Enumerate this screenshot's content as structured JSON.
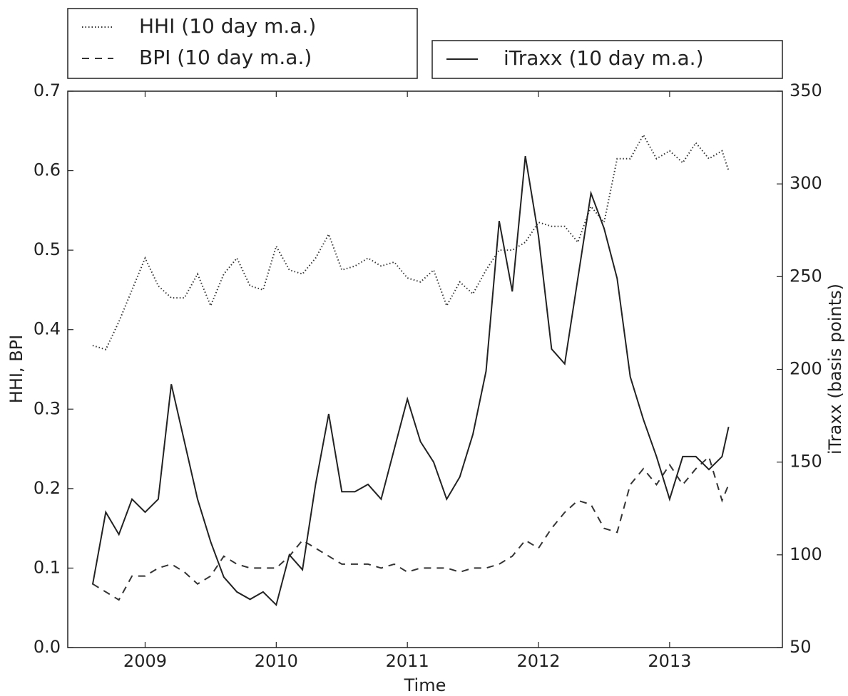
{
  "chart_data": {
    "type": "line",
    "xlabel": "Time",
    "ylabel": "HHI, BPI",
    "y2label": "iTraxx (basis points)",
    "x": [
      2008.6,
      2008.7,
      2008.8,
      2008.9,
      2009.0,
      2009.1,
      2009.2,
      2009.3,
      2009.4,
      2009.5,
      2009.6,
      2009.7,
      2009.8,
      2009.9,
      2010.0,
      2010.1,
      2010.2,
      2010.3,
      2010.4,
      2010.5,
      2010.6,
      2010.7,
      2010.8,
      2010.9,
      2011.0,
      2011.1,
      2011.2,
      2011.3,
      2011.4,
      2011.5,
      2011.6,
      2011.7,
      2011.8,
      2011.9,
      2012.0,
      2012.1,
      2012.2,
      2012.3,
      2012.4,
      2012.5,
      2012.6,
      2012.7,
      2012.8,
      2012.9,
      2013.0,
      2013.1,
      2013.2,
      2013.3,
      2013.4,
      2013.45
    ],
    "xlim": [
      2008.41,
      2013.86
    ],
    "xticks": [
      2009,
      2010,
      2011,
      2012,
      2013
    ],
    "ylim": [
      0,
      0.7
    ],
    "yticks": [
      {
        "value": 0,
        "label": "0.0"
      },
      0.1,
      0.2,
      0.3,
      0.4,
      0.5,
      0.6,
      0.7
    ],
    "y2lim": [
      50,
      350
    ],
    "y2ticks": [
      50,
      100,
      150,
      200,
      250,
      300,
      350
    ],
    "series": [
      {
        "name": "HHI (10 day m.a.)",
        "color": "#333333",
        "linestyle": "dotted",
        "values": [
          0.38,
          0.375,
          0.41,
          0.45,
          0.49,
          0.455,
          0.44,
          0.44,
          0.47,
          0.43,
          0.47,
          0.49,
          0.455,
          0.45,
          0.505,
          0.475,
          0.47,
          0.49,
          0.52,
          0.475,
          0.48,
          0.49,
          0.48,
          0.485,
          0.465,
          0.46,
          0.475,
          0.43,
          0.46,
          0.445,
          0.475,
          0.5,
          0.5,
          0.51,
          0.535,
          0.53,
          0.53,
          0.51,
          0.555,
          0.535,
          0.615,
          0.615,
          0.645,
          0.615,
          0.625,
          0.61,
          0.635,
          0.615,
          0.625,
          0.6
        ]
      },
      {
        "name": "BPI (10 day m.a.)",
        "color": "#333333",
        "linestyle": "dashed",
        "values": [
          0.08,
          0.07,
          0.06,
          0.09,
          0.09,
          0.1,
          0.105,
          0.095,
          0.08,
          0.09,
          0.115,
          0.105,
          0.1,
          0.1,
          0.1,
          0.115,
          0.135,
          0.125,
          0.115,
          0.105,
          0.105,
          0.105,
          0.1,
          0.105,
          0.095,
          0.1,
          0.1,
          0.1,
          0.095,
          0.1,
          0.1,
          0.105,
          0.115,
          0.135,
          0.125,
          0.15,
          0.17,
          0.185,
          0.18,
          0.15,
          0.145,
          0.205,
          0.225,
          0.205,
          0.23,
          0.205,
          0.225,
          0.24,
          0.185,
          0.205
        ]
      },
      {
        "name": "iTraxx (10 day m.a.)",
        "color": "#222222",
        "linestyle": "solid",
        "axis": "y2",
        "values": [
          84,
          123,
          111,
          130,
          123,
          130,
          192,
          161,
          130,
          107,
          88,
          80,
          76,
          80,
          73,
          100,
          92,
          138,
          176,
          134,
          134,
          138,
          130,
          157,
          184,
          161,
          150,
          130,
          142,
          165,
          199,
          280,
          242,
          315,
          272,
          211,
          203,
          249,
          295,
          276,
          249,
          196,
          173,
          153,
          130,
          153,
          153,
          146,
          153,
          169
        ]
      }
    ]
  }
}
